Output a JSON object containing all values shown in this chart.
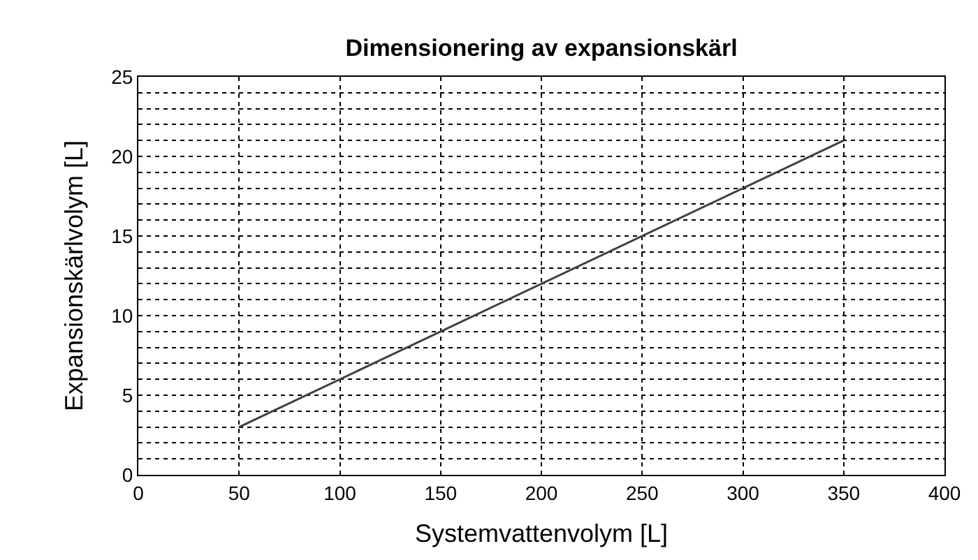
{
  "chart_data": {
    "type": "line",
    "title": "Dimensionering av expansionskärl",
    "xlabel": "Systemvattenvolym [L]",
    "ylabel": "Expansionskärlvolym [L]",
    "x": [
      50,
      350
    ],
    "series": [
      {
        "color": "#404040",
        "values": [
          3,
          21
        ]
      }
    ],
    "xlim": [
      0,
      400
    ],
    "xticks": [
      0,
      50,
      100,
      150,
      200,
      250,
      300,
      350,
      400
    ],
    "ylim": [
      0,
      25
    ],
    "yticks": [
      0,
      {
        "value": 1,
        "label": null
      },
      {
        "value": 2,
        "label": null
      },
      {
        "value": 3,
        "label": null
      },
      {
        "value": 4,
        "label": null
      },
      5,
      {
        "value": 6,
        "label": null
      },
      {
        "value": 7,
        "label": null
      },
      {
        "value": 8,
        "label": null
      },
      {
        "value": 9,
        "label": null
      },
      10,
      {
        "value": 11,
        "label": null
      },
      {
        "value": 12,
        "label": null
      },
      {
        "value": 13,
        "label": null
      },
      {
        "value": 14,
        "label": null
      },
      15,
      {
        "value": 16,
        "label": null
      },
      {
        "value": 17,
        "label": null
      },
      {
        "value": 18,
        "label": null
      },
      {
        "value": 19,
        "label": null
      },
      20,
      {
        "value": 21,
        "label": null
      },
      {
        "value": 22,
        "label": null
      },
      {
        "value": 23,
        "label": null
      },
      {
        "value": 24,
        "label": null
      },
      25
    ],
    "grid": true,
    "marker": "none",
    "line_style": "solid"
  }
}
